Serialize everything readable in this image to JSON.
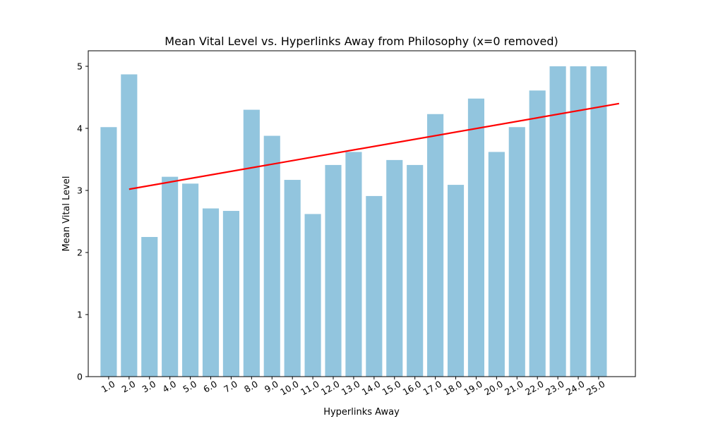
{
  "chart_data": {
    "type": "bar",
    "title": "Mean Vital Level vs. Hyperlinks Away from Philosophy (x=0 removed)",
    "xlabel": "Hyperlinks Away",
    "ylabel": "Mean Vital Level",
    "categories": [
      "1.0",
      "2.0",
      "3.0",
      "4.0",
      "5.0",
      "6.0",
      "7.0",
      "8.0",
      "9.0",
      "10.0",
      "11.0",
      "12.0",
      "13.0",
      "14.0",
      "15.0",
      "16.0",
      "17.0",
      "18.0",
      "19.0",
      "20.0",
      "21.0",
      "22.0",
      "23.0",
      "24.0",
      "25.0"
    ],
    "series": [
      {
        "type": "bar",
        "values": [
          4.02,
          4.87,
          2.25,
          3.22,
          3.11,
          2.71,
          2.67,
          4.3,
          3.88,
          3.17,
          2.62,
          3.41,
          3.62,
          2.91,
          3.49,
          3.41,
          4.23,
          3.09,
          4.48,
          3.62,
          4.02,
          4.61,
          5.0,
          5.0,
          5.0
        ],
        "color": "#92c5de"
      },
      {
        "type": "line",
        "x": [
          2.0,
          26.0
        ],
        "y": [
          3.02,
          4.4
        ],
        "color": "#ff0000"
      }
    ],
    "ylim": [
      0,
      5.25
    ],
    "yticks": [
      0,
      1,
      2,
      3,
      4,
      5
    ],
    "grid": false,
    "legend": "none"
  }
}
